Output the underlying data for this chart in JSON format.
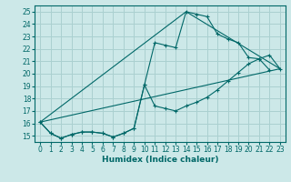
{
  "xlabel": "Humidex (Indice chaleur)",
  "ylabel": "",
  "bg_color": "#cce8e8",
  "line_color": "#006868",
  "grid_color": "#aad0d0",
  "xlim": [
    -0.5,
    23.5
  ],
  "ylim": [
    14.5,
    25.5
  ],
  "xticks": [
    0,
    1,
    2,
    3,
    4,
    5,
    6,
    7,
    8,
    9,
    10,
    11,
    12,
    13,
    14,
    15,
    16,
    17,
    18,
    19,
    20,
    21,
    22,
    23
  ],
  "yticks": [
    15,
    16,
    17,
    18,
    19,
    20,
    21,
    22,
    23,
    24,
    25
  ],
  "lines_with_markers": [
    {
      "x": [
        0,
        1,
        2,
        3,
        4,
        5,
        6,
        7,
        8,
        9,
        10,
        11,
        12,
        13,
        14,
        15,
        16,
        17,
        18,
        19,
        20,
        21,
        22
      ],
      "y": [
        16.1,
        15.2,
        14.8,
        15.1,
        15.3,
        15.3,
        15.2,
        14.9,
        15.2,
        15.6,
        19.1,
        22.5,
        22.3,
        22.1,
        25.0,
        24.8,
        24.6,
        23.2,
        22.8,
        22.5,
        21.3,
        21.2,
        20.3
      ]
    },
    {
      "x": [
        0,
        1,
        2,
        3,
        4,
        5,
        6,
        7,
        8,
        9,
        10,
        11,
        12,
        13,
        14,
        15,
        16,
        17,
        18,
        19,
        20,
        21,
        22,
        23
      ],
      "y": [
        16.1,
        15.2,
        14.8,
        15.1,
        15.3,
        15.3,
        15.2,
        14.9,
        15.2,
        15.6,
        19.1,
        17.4,
        17.2,
        17.0,
        17.4,
        17.7,
        18.1,
        18.7,
        19.4,
        20.1,
        20.8,
        21.2,
        21.5,
        20.4
      ]
    }
  ],
  "lines_straight": [
    {
      "x": [
        0,
        14,
        23
      ],
      "y": [
        16.1,
        25.0,
        20.4
      ]
    },
    {
      "x": [
        0,
        23
      ],
      "y": [
        16.1,
        20.4
      ]
    }
  ]
}
